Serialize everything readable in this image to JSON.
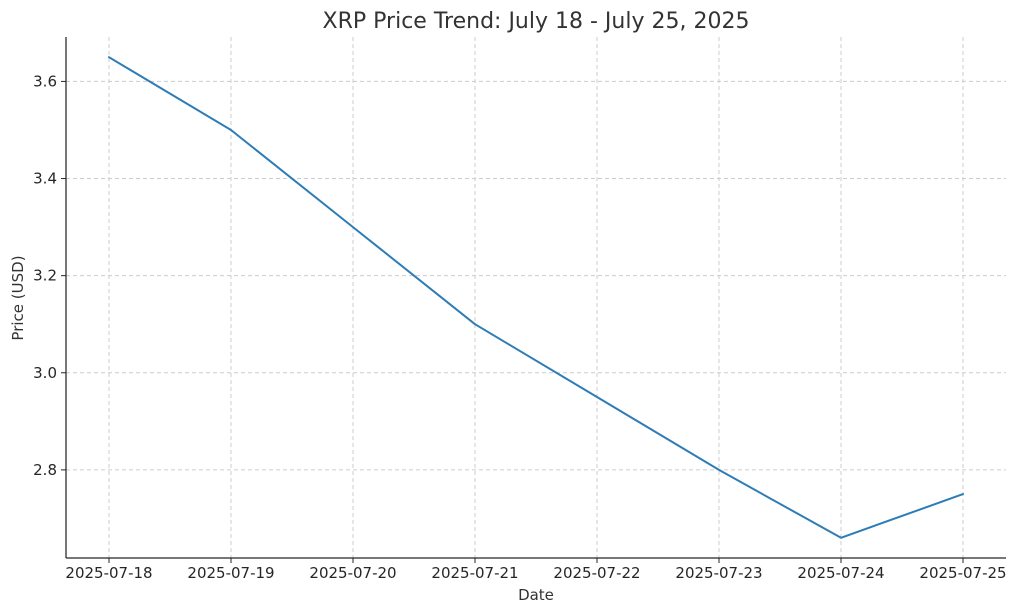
{
  "chart_data": {
    "type": "line",
    "title": "XRP Price Trend: July 18 - July 25, 2025",
    "xlabel": "Date",
    "ylabel": "Price (USD)",
    "categories": [
      "2025-07-18",
      "2025-07-19",
      "2025-07-20",
      "2025-07-21",
      "2025-07-22",
      "2025-07-23",
      "2025-07-24",
      "2025-07-25"
    ],
    "series": [
      {
        "values": [
          3.65,
          3.5,
          3.3,
          3.1,
          2.95,
          2.8,
          2.66,
          2.75
        ],
        "color": "#2e7cb6"
      }
    ],
    "yticks": [
      2.8,
      3.0,
      3.2,
      3.4,
      3.6
    ],
    "ytick_labels": [
      "2.8",
      "3.0",
      "3.2",
      "3.4",
      "3.6"
    ],
    "ylim": [
      2.6185,
      3.6915
    ],
    "grid": true,
    "legend": "none"
  }
}
